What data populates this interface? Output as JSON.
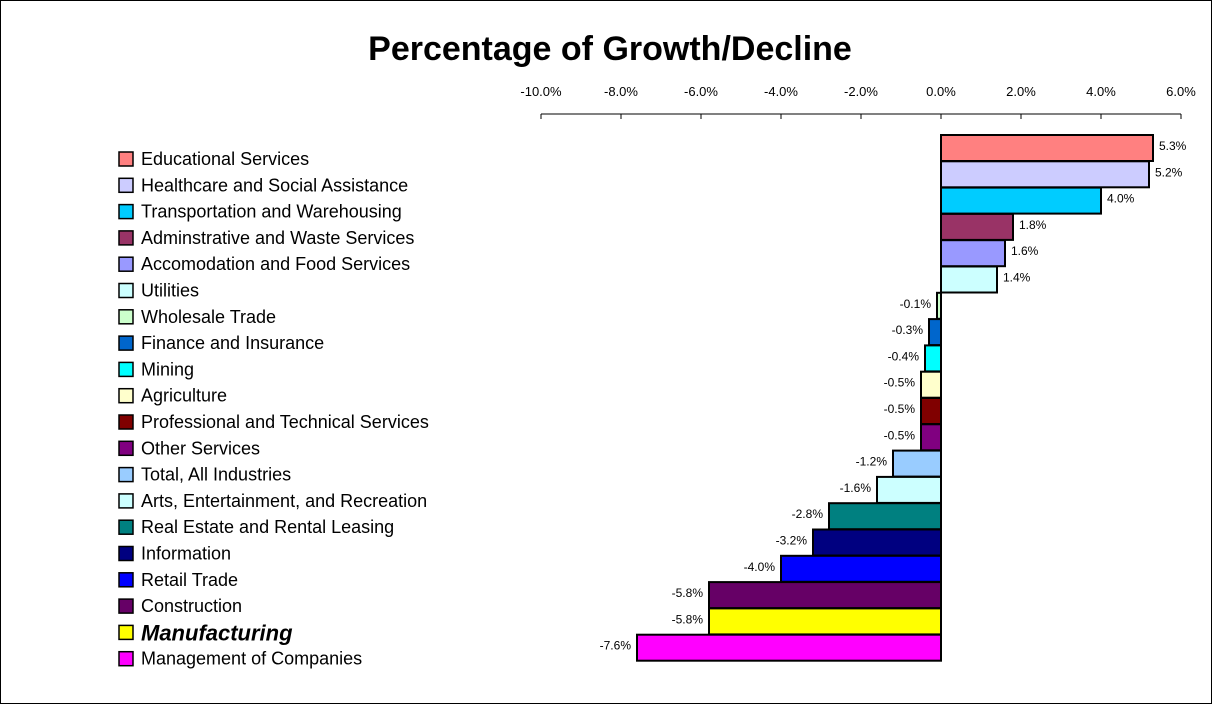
{
  "chart_data": {
    "type": "bar",
    "orientation": "horizontal",
    "title": "Percentage of Growth/Decline",
    "xlabel": "",
    "ylabel": "",
    "xlim": [
      -10,
      6
    ],
    "x_ticks": [
      -10,
      -8,
      -6,
      -4,
      -2,
      0,
      2,
      4,
      6
    ],
    "x_tick_labels": [
      "-10.0%",
      "-8.0%",
      "-6.0%",
      "-4.0%",
      "-2.0%",
      "0.0%",
      "2.0%",
      "4.0%",
      "6.0%"
    ],
    "axis_position": "top",
    "grid": false,
    "legend_position": "left",
    "categories": [
      "Educational Services",
      "Healthcare and Social Assistance",
      "Transportation and Warehousing",
      "Adminstrative and Waste Services",
      "Accomodation and Food Services",
      "Utilities",
      "Wholesale Trade",
      "Finance and Insurance",
      "Mining",
      "Agriculture",
      "Professional and Technical Services",
      "Other Services",
      "Total, All Industries",
      "Arts, Entertainment, and Recreation",
      "Real Estate and Rental Leasing",
      "Information",
      "Retail Trade",
      "Construction",
      "Manufacturing",
      "Management of Companies"
    ],
    "values": [
      5.3,
      5.2,
      4.0,
      1.8,
      1.6,
      1.4,
      -0.1,
      -0.3,
      -0.4,
      -0.5,
      -0.5,
      -0.5,
      -1.2,
      -1.6,
      -2.8,
      -3.2,
      -4.0,
      -5.8,
      -5.8,
      -7.6
    ],
    "data_labels": [
      "5.3%",
      "5.2%",
      "4.0%",
      "1.8%",
      "1.6%",
      "1.4%",
      "-0.1%",
      "-0.3%",
      "-0.4%",
      "-0.5%",
      "-0.5%",
      "-0.5%",
      "-1.2%",
      "-1.6%",
      "-2.8%",
      "-3.2%",
      "-4.0%",
      "-5.8%",
      "-5.8%",
      "-7.6%"
    ],
    "colors": [
      "#ff8080",
      "#ccccff",
      "#00ccff",
      "#993366",
      "#9999ff",
      "#ccffff",
      "#ccffcc",
      "#0066cc",
      "#00ffff",
      "#ffffcc",
      "#800000",
      "#800080",
      "#99ccff",
      "#ccffff",
      "#008080",
      "#000080",
      "#0000ff",
      "#660066",
      "#ffff00",
      "#ff00ff"
    ],
    "highlighted_category": "Manufacturing"
  }
}
